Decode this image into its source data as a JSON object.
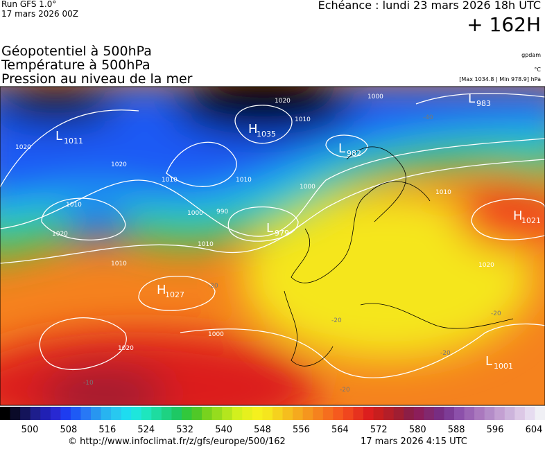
{
  "header": {
    "run": "Run GFS 1.0°",
    "run_date": "17 mars 2026 00Z",
    "valid": "Echéance : lundi 23 mars 2026 18h UTC",
    "lead": "+ 162H"
  },
  "fields": [
    "Géopotentiel à 500hPa",
    "Température à 500hPa",
    "Pression au niveau de la mer"
  ],
  "units": {
    "geopotential": "gpdam",
    "temperature": "°C",
    "pressure": "[Max 1034.8 | Min 978.9] hPa"
  },
  "pressure_centers": [
    {
      "letter": "L",
      "value": "1011"
    },
    {
      "letter": "H",
      "value": "1035"
    },
    {
      "letter": "L",
      "value": "982"
    },
    {
      "letter": "L",
      "value": "983"
    },
    {
      "letter": "L",
      "value": "979"
    },
    {
      "letter": "H",
      "value": "1027"
    },
    {
      "letter": "H",
      "value": "1021"
    },
    {
      "letter": "L",
      "value": "1001"
    }
  ],
  "isobar_labels": [
    "1000",
    "1020",
    "1010",
    "1020",
    "1010",
    "1000",
    "1010",
    "1010",
    "990",
    "1000",
    "1010",
    "1010",
    "1020",
    "1020",
    "1020",
    "1000",
    "1020",
    "1010"
  ],
  "temperature_labels": [
    "-20",
    "-40",
    "-20",
    "-20",
    "-20",
    "-20",
    "-10"
  ],
  "legend": {
    "ticks": [
      500,
      508,
      516,
      524,
      532,
      540,
      548,
      556,
      564,
      572,
      580,
      588,
      596,
      604
    ],
    "colors": [
      "#000000",
      "#0a0a28",
      "#14145a",
      "#1e1e8c",
      "#2020b4",
      "#2828d2",
      "#1e3cf0",
      "#1e5af5",
      "#2878f5",
      "#2896f0",
      "#28b4f0",
      "#28c8f0",
      "#1edcf0",
      "#1ee6dc",
      "#1ee6be",
      "#1edca0",
      "#1ed282",
      "#1ec864",
      "#32c83c",
      "#50c828",
      "#78d21e",
      "#96dc1e",
      "#b4e61e",
      "#d2f01e",
      "#e6f01e",
      "#f5f01e",
      "#f5e61e",
      "#f5d21e",
      "#f5be1e",
      "#f5aa1e",
      "#f5961e",
      "#f5821e",
      "#f56e1e",
      "#f55a1e",
      "#f0461e",
      "#e6321e",
      "#dc1e1e",
      "#c81e1e",
      "#b41e28",
      "#a01e32",
      "#8c1e46",
      "#8c1e5a",
      "#82286e",
      "#782d82",
      "#7d3c96",
      "#8c50aa",
      "#9b64b4",
      "#aa78be",
      "#b48cc8",
      "#c3a0d2",
      "#cdb4dc",
      "#dcc8e6",
      "#e6dcf0",
      "#f0f0f5"
    ]
  },
  "footer": {
    "url": "© http://www.infoclimat.fr/z/gfs/europe/500/162",
    "generated": "17 mars 2026  4:15 UTC"
  }
}
